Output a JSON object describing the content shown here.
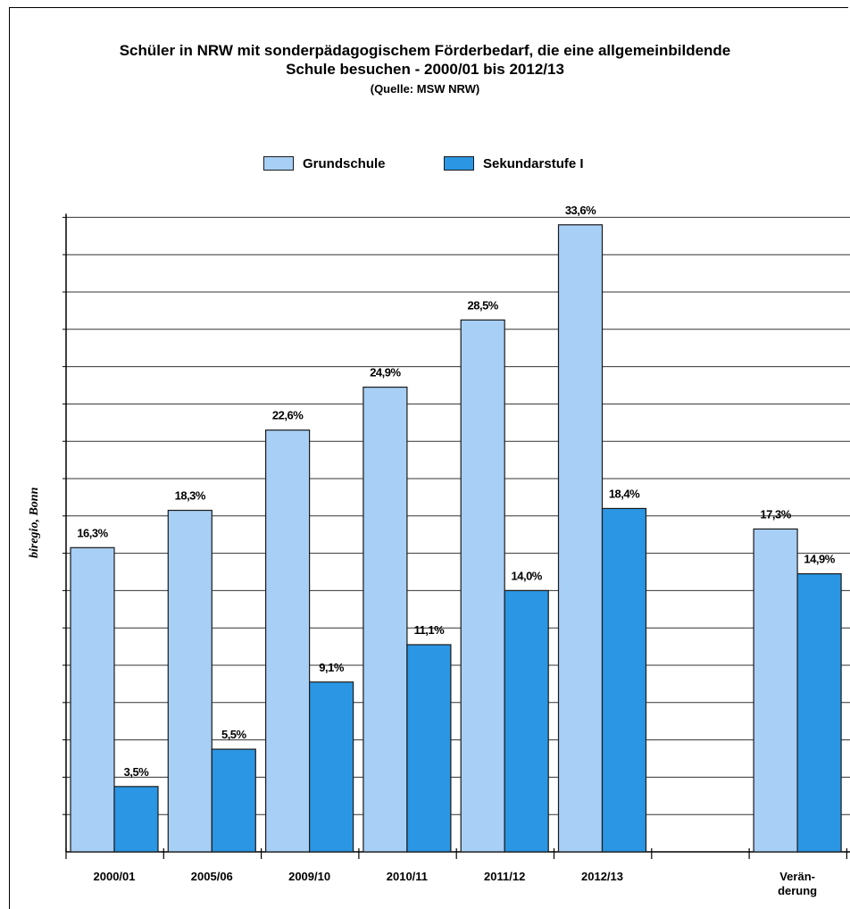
{
  "chart_data": {
    "type": "bar",
    "title_line1": "Schüler in NRW mit sonderpädagogischem Förderbedarf, die eine allgemeinbildende",
    "title_line2": "Schule besuchen - 2000/01 bis 2012/13",
    "subtitle": "(Quelle: MSW NRW)",
    "watermark": "biregio, Bonn",
    "categories": [
      "2000/01",
      "2005/06",
      "2009/10",
      "2010/11",
      "2011/12",
      "2012/13",
      "",
      "Verän-\nderung"
    ],
    "category_labels": [
      [
        "2000/01"
      ],
      [
        "2005/06"
      ],
      [
        "2009/10"
      ],
      [
        "2010/11"
      ],
      [
        "2011/12"
      ],
      [
        "2012/13"
      ],
      [],
      [
        "Verän-",
        "derung"
      ]
    ],
    "series": [
      {
        "name": "Grundschule",
        "color": "#a8cff5",
        "values": [
          16.3,
          18.3,
          22.6,
          24.9,
          28.5,
          33.6,
          null,
          17.3
        ],
        "labels": [
          "16,3%",
          "18,3%",
          "22,6%",
          "24,9%",
          "28,5%",
          "33,6%",
          "",
          "17,3%"
        ]
      },
      {
        "name": "Sekundarstufe I",
        "color": "#2b96e3",
        "values": [
          3.5,
          5.5,
          9.1,
          11.1,
          14.0,
          18.4,
          null,
          14.9
        ],
        "labels": [
          "3,5%",
          "5,5%",
          "9,1%",
          "11,1%",
          "14,0%",
          "18,4%",
          "",
          "14,9%"
        ]
      }
    ],
    "ylim": [
      0,
      34
    ],
    "grid": true,
    "legend_position": "top-center"
  }
}
